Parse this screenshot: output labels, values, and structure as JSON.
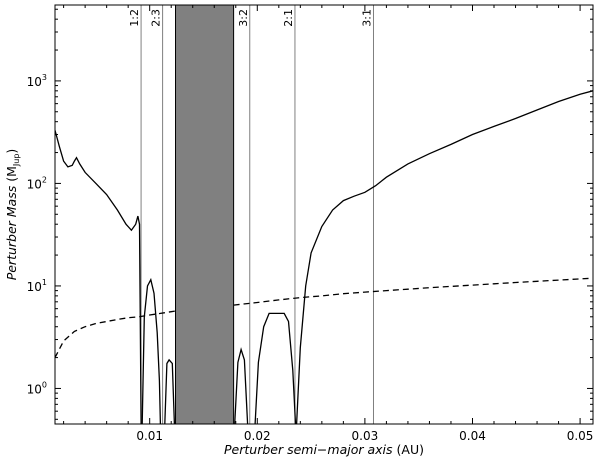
{
  "chart_data": {
    "type": "line",
    "xlabel": {
      "italic": "Perturber semi−major axis",
      "unit": "(AU)"
    },
    "ylabel": {
      "italic": "Perturber Mass",
      "unit_main": "(M",
      "unit_sub": "Jup",
      "unit_close": ")"
    },
    "xlim": [
      0.0012,
      0.0512
    ],
    "ylim": [
      0.45,
      5500
    ],
    "yscale": "log",
    "grid": false,
    "xticks": [
      {
        "value": 0.01,
        "label": "0.01"
      },
      {
        "value": 0.02,
        "label": "0.02"
      },
      {
        "value": 0.03,
        "label": "0.03"
      },
      {
        "value": 0.04,
        "label": "0.04"
      },
      {
        "value": 0.05,
        "label": "0.05"
      }
    ],
    "yticks": [
      {
        "value": 1,
        "base": "10",
        "exp": "0"
      },
      {
        "value": 10,
        "base": "10",
        "exp": "1"
      },
      {
        "value": 100,
        "base": "10",
        "exp": "2"
      },
      {
        "value": 1000,
        "base": "10",
        "exp": "3"
      }
    ],
    "shaded_region": {
      "x0": 0.0124,
      "x1": 0.0178,
      "color": "#808080"
    },
    "resonances": [
      {
        "label": "1:2",
        "x": 0.0092
      },
      {
        "label": "2:3",
        "x": 0.0112
      },
      {
        "label": "3:2",
        "x": 0.0193
      },
      {
        "label": "2:1",
        "x": 0.0235
      },
      {
        "label": "3:1",
        "x": 0.0308
      }
    ],
    "series": [
      {
        "style": "solid",
        "color": "#000000",
        "segments": [
          [
            [
              0.0012,
              330
            ],
            [
              0.0016,
              230
            ],
            [
              0.002,
              165
            ],
            [
              0.0024,
              145
            ],
            [
              0.0028,
              150
            ],
            [
              0.003,
              165
            ],
            [
              0.0032,
              178
            ],
            [
              0.0035,
              155
            ],
            [
              0.004,
              128
            ],
            [
              0.005,
              100
            ],
            [
              0.006,
              78
            ],
            [
              0.007,
              55
            ],
            [
              0.0078,
              40
            ],
            [
              0.0083,
              35
            ],
            [
              0.0087,
              40
            ],
            [
              0.0089,
              48
            ],
            [
              0.00905,
              40
            ],
            [
              0.0092,
              0.45
            ]
          ],
          [
            [
              0.0093,
              0.45
            ],
            [
              0.0095,
              5
            ],
            [
              0.0098,
              10
            ],
            [
              0.0101,
              11.5
            ],
            [
              0.0104,
              8.5
            ],
            [
              0.0107,
              3.5
            ],
            [
              0.0109,
              1.2
            ],
            [
              0.011,
              0.45
            ]
          ],
          [
            [
              0.0114,
              0.45
            ],
            [
              0.0116,
              1.75
            ],
            [
              0.0118,
              1.9
            ],
            [
              0.0121,
              1.75
            ],
            [
              0.0123,
              0.45
            ]
          ],
          [
            [
              0.0179,
              0.45
            ],
            [
              0.0182,
              1.8
            ],
            [
              0.0185,
              2.4
            ],
            [
              0.0188,
              1.9
            ],
            [
              0.0191,
              0.45
            ]
          ],
          [
            [
              0.0198,
              0.45
            ],
            [
              0.0201,
              1.8
            ],
            [
              0.0206,
              4
            ],
            [
              0.0211,
              5.4
            ],
            [
              0.0225,
              5.4
            ],
            [
              0.0229,
              4.5
            ],
            [
              0.0233,
              1.5
            ],
            [
              0.02355,
              0.45
            ]
          ],
          [
            [
              0.02365,
              0.45
            ],
            [
              0.024,
              2.5
            ],
            [
              0.0245,
              10
            ],
            [
              0.025,
              21
            ],
            [
              0.026,
              38
            ],
            [
              0.027,
              55
            ],
            [
              0.028,
              68
            ],
            [
              0.029,
              75
            ],
            [
              0.03,
              82
            ],
            [
              0.031,
              95
            ],
            [
              0.032,
              115
            ],
            [
              0.034,
              155
            ],
            [
              0.036,
              195
            ],
            [
              0.038,
              240
            ],
            [
              0.04,
              300
            ],
            [
              0.042,
              360
            ],
            [
              0.044,
              430
            ],
            [
              0.046,
              520
            ],
            [
              0.048,
              630
            ],
            [
              0.05,
              740
            ],
            [
              0.0512,
              800
            ]
          ]
        ]
      },
      {
        "style": "dashed",
        "color": "#000000",
        "segments": [
          [
            [
              0.0012,
              2.0
            ],
            [
              0.002,
              2.9
            ],
            [
              0.003,
              3.6
            ],
            [
              0.004,
              4.0
            ],
            [
              0.005,
              4.3
            ],
            [
              0.006,
              4.5
            ],
            [
              0.007,
              4.7
            ],
            [
              0.008,
              4.9
            ],
            [
              0.009,
              5.0
            ],
            [
              0.01,
              5.2
            ],
            [
              0.011,
              5.4
            ],
            [
              0.012,
              5.6
            ],
            [
              0.0124,
              5.7
            ]
          ],
          [
            [
              0.0178,
              6.5
            ],
            [
              0.02,
              6.9
            ],
            [
              0.022,
              7.3
            ],
            [
              0.024,
              7.7
            ],
            [
              0.026,
              8.0
            ],
            [
              0.028,
              8.4
            ],
            [
              0.03,
              8.7
            ],
            [
              0.032,
              9.0
            ],
            [
              0.034,
              9.3
            ],
            [
              0.036,
              9.6
            ],
            [
              0.038,
              9.9
            ],
            [
              0.04,
              10.2
            ],
            [
              0.042,
              10.5
            ],
            [
              0.044,
              10.8
            ],
            [
              0.046,
              11.1
            ],
            [
              0.048,
              11.4
            ],
            [
              0.05,
              11.7
            ],
            [
              0.0512,
              11.9
            ]
          ]
        ]
      }
    ]
  }
}
